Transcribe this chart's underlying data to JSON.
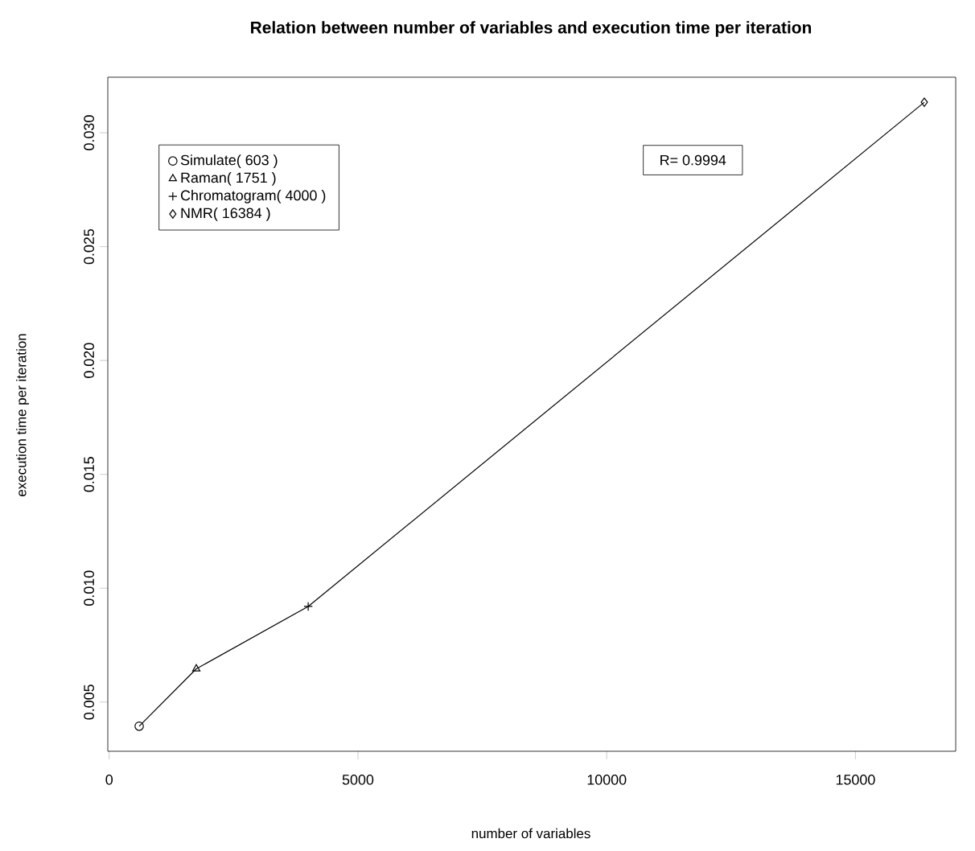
{
  "chart_data": {
    "type": "line",
    "title": "Relation between number of variables and execution time per iteration",
    "xlabel": "number of variables",
    "ylabel": "execution time per iteration",
    "xlim": [
      -28,
      17015
    ],
    "xticks": [
      0,
      5000,
      10000,
      15000
    ],
    "ylim": [
      0.00284,
      0.03244
    ],
    "yticks": [
      0.005,
      {
        "value": 0.01,
        "label": "0.010"
      },
      0.015,
      {
        "value": 0.02,
        "label": "0.020"
      },
      0.025,
      {
        "value": 0.03,
        "label": "0.030"
      }
    ],
    "series": [
      {
        "color": "#000000",
        "marker": "none",
        "x": [
          603,
          1751,
          4000,
          16384
        ],
        "values": [
          0.00394,
          0.00646,
          0.0092,
          0.03134
        ]
      },
      {
        "type": "scatter",
        "name": "Simulate( 603 )",
        "color": "#000000",
        "marker": "circle",
        "x": [
          603
        ],
        "values": [
          0.00394
        ]
      },
      {
        "type": "scatter",
        "name": "Raman( 1751 )",
        "color": "#000000",
        "marker": "triangle",
        "x": [
          1751
        ],
        "values": [
          0.00646
        ]
      },
      {
        "type": "scatter",
        "name": "Chromatogram( 4000 )",
        "color": "#000000",
        "marker": "cross",
        "x": [
          4000
        ],
        "values": [
          0.0092
        ]
      },
      {
        "type": "scatter",
        "name": "NMR( 16384 )",
        "color": "#000000",
        "marker": "diamond",
        "x": [
          16384
        ],
        "values": [
          0.03134
        ]
      }
    ],
    "legend": "top left",
    "grid": false,
    "annotations": [
      "R= 0.9994"
    ]
  }
}
